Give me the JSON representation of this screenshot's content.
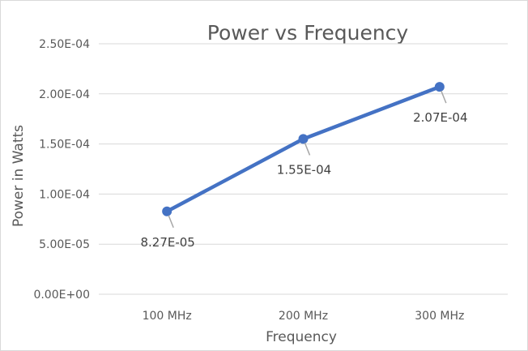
{
  "chart_data": {
    "type": "line",
    "title": "Power vs Frequency",
    "xlabel": "Frequency",
    "ylabel": "Power in Watts",
    "categories": [
      "100 MHz",
      "200 MHz",
      "300 MHz"
    ],
    "series": [
      {
        "values": [
          8.27e-05,
          0.000155,
          0.000207
        ],
        "data_labels": [
          "8.27E-05",
          "1.55E-04",
          "2.07E-04"
        ],
        "color": "#4472c4"
      }
    ],
    "ylim": [
      0,
      0.00025
    ],
    "yticks": [
      0,
      5e-05,
      0.0001,
      0.00015,
      0.0002,
      0.00025
    ],
    "ytick_labels": [
      "0.00E+00",
      "5.00E-05",
      "1.00E-04",
      "1.50E-04",
      "2.00E-04",
      "2.50E-04"
    ],
    "grid": true,
    "legend": "none"
  }
}
